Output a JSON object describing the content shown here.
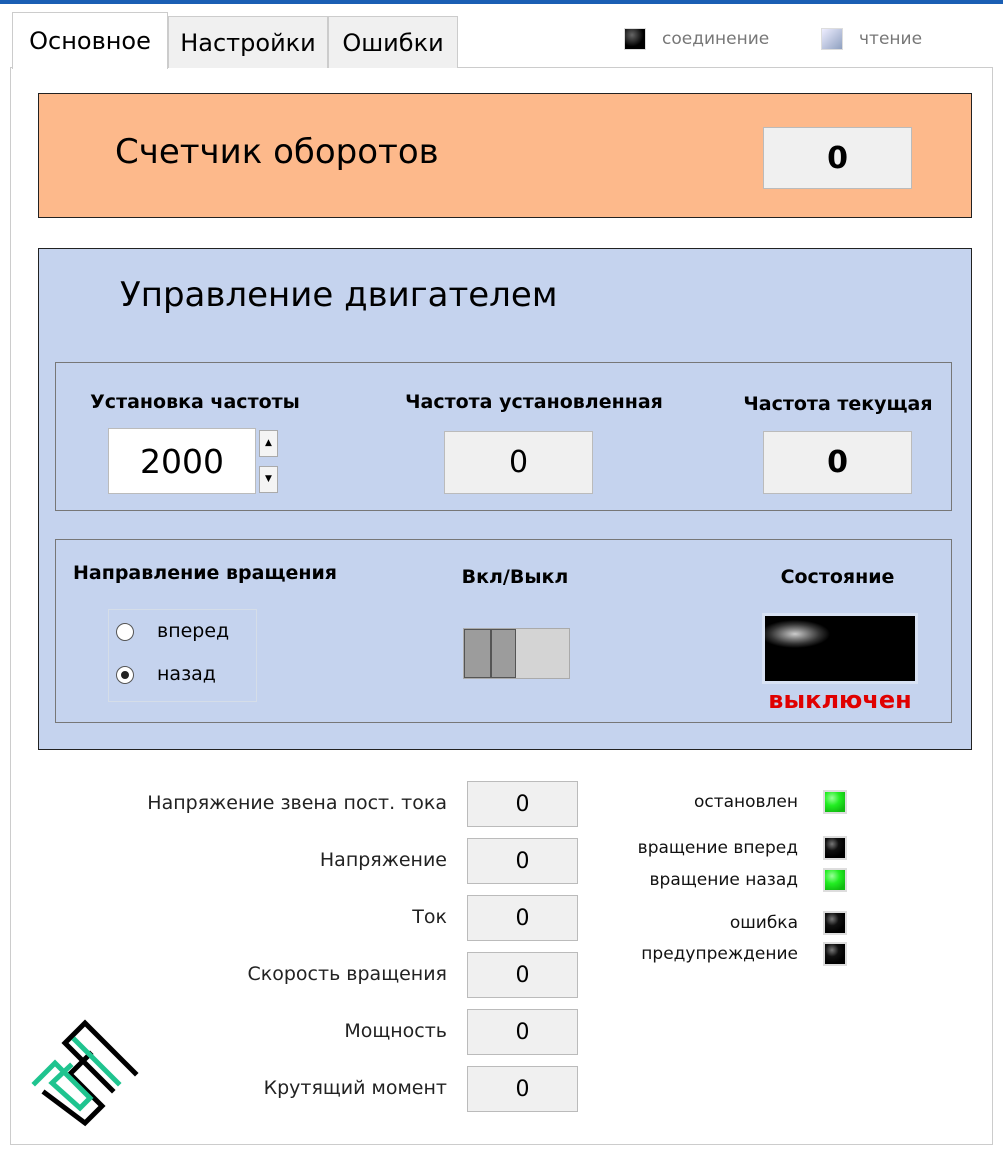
{
  "tabs": [
    {
      "label": "Основное",
      "active": true
    },
    {
      "label": "Настройки"
    },
    {
      "label": "Ошибки"
    }
  ],
  "legend": [
    {
      "label": "соединение",
      "icon": "led-black"
    },
    {
      "label": "чтение",
      "icon": "led-light"
    }
  ],
  "counter": {
    "title": "Счетчик оборотов",
    "value": "0",
    "bg": "#fdb98b"
  },
  "motor": {
    "title": "Управление двигателем",
    "bg": "#c5d3ee",
    "freq_set_label": "Установка частоты",
    "freq_set_value": "2000",
    "freq_applied_label": "Частота установленная",
    "freq_applied_value": "0",
    "freq_current_label": "Частота текущая",
    "freq_current_value": "0",
    "direction_label": "Направление вращения",
    "direction_options": [
      {
        "label": "вперед",
        "selected": false
      },
      {
        "label": "назад",
        "selected": true
      }
    ],
    "onoff_label": "Вкл/Выкл",
    "onoff_state": false,
    "state_label": "Состояние",
    "state_value": "выключен",
    "state_color": "#e00000"
  },
  "measurements": [
    {
      "label": "Напряжение звена пост. тока",
      "value": "0"
    },
    {
      "label": "Напряжение",
      "value": "0"
    },
    {
      "label": "Ток",
      "value": "0"
    },
    {
      "label": "Скорость вращения",
      "value": "0"
    },
    {
      "label": "Мощность",
      "value": "0"
    },
    {
      "label": "Крутящий момент",
      "value": "0"
    }
  ],
  "indicators": [
    {
      "label": "остановлен",
      "on": true
    },
    {
      "label": "вращение вперед",
      "on": false
    },
    {
      "label": "вращение назад",
      "on": true
    },
    {
      "label": "ошибка",
      "on": false
    },
    {
      "label": "предупреждение",
      "on": false
    }
  ]
}
